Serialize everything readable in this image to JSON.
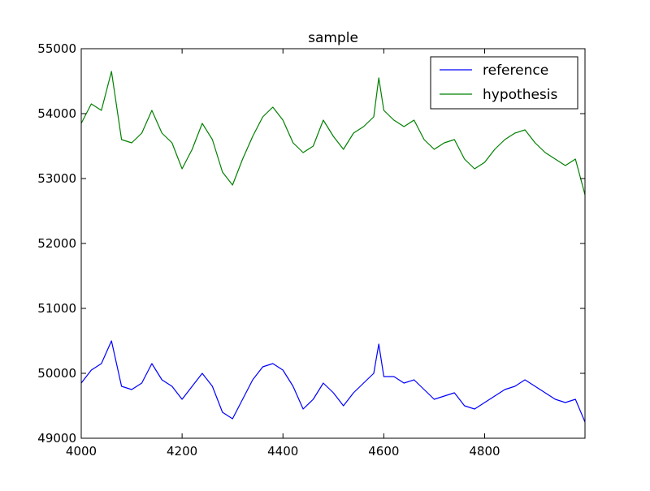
{
  "chart_data": {
    "type": "line",
    "title": "sample",
    "xlabel": "",
    "ylabel": "",
    "xlim": [
      4000,
      4999
    ],
    "ylim": [
      49000,
      55000
    ],
    "x_ticks": [
      4000,
      4200,
      4400,
      4600,
      4800
    ],
    "y_ticks": [
      49000,
      50000,
      51000,
      52000,
      53000,
      54000,
      55000
    ],
    "grid": false,
    "legend_position": "top-right",
    "x": [
      4000,
      4020,
      4040,
      4060,
      4080,
      4100,
      4120,
      4140,
      4160,
      4180,
      4200,
      4220,
      4240,
      4260,
      4280,
      4300,
      4320,
      4340,
      4360,
      4380,
      4400,
      4420,
      4440,
      4460,
      4480,
      4500,
      4520,
      4540,
      4560,
      4580,
      4590,
      4600,
      4620,
      4640,
      4660,
      4680,
      4700,
      4720,
      4740,
      4760,
      4780,
      4800,
      4820,
      4840,
      4860,
      4880,
      4900,
      4920,
      4940,
      4960,
      4980,
      4999
    ],
    "series": [
      {
        "name": "reference",
        "color": "#0000ff",
        "values": [
          49850,
          50050,
          50150,
          50500,
          49800,
          49750,
          49850,
          50150,
          49900,
          49800,
          49600,
          49800,
          50000,
          49800,
          49400,
          49300,
          49600,
          49900,
          50100,
          50150,
          50050,
          49800,
          49450,
          49600,
          49850,
          49700,
          49500,
          49700,
          49850,
          50000,
          50450,
          49950,
          49950,
          49850,
          49900,
          49750,
          49600,
          49650,
          49700,
          49500,
          49450,
          49550,
          49650,
          49750,
          49800,
          49900,
          49800,
          49700,
          49600,
          49550,
          49600,
          49250
        ]
      },
      {
        "name": "hypothesis",
        "color": "#008000",
        "values": [
          53850,
          54150,
          54050,
          54650,
          53600,
          53550,
          53700,
          54050,
          53700,
          53550,
          53150,
          53450,
          53850,
          53600,
          53100,
          52900,
          53300,
          53650,
          53950,
          54100,
          53900,
          53550,
          53400,
          53500,
          53900,
          53650,
          53450,
          53700,
          53800,
          53950,
          54550,
          54050,
          53900,
          53800,
          53900,
          53600,
          53450,
          53550,
          53600,
          53300,
          53150,
          53250,
          53450,
          53600,
          53700,
          53750,
          53550,
          53400,
          53300,
          53200,
          53300,
          52750
        ]
      }
    ]
  }
}
